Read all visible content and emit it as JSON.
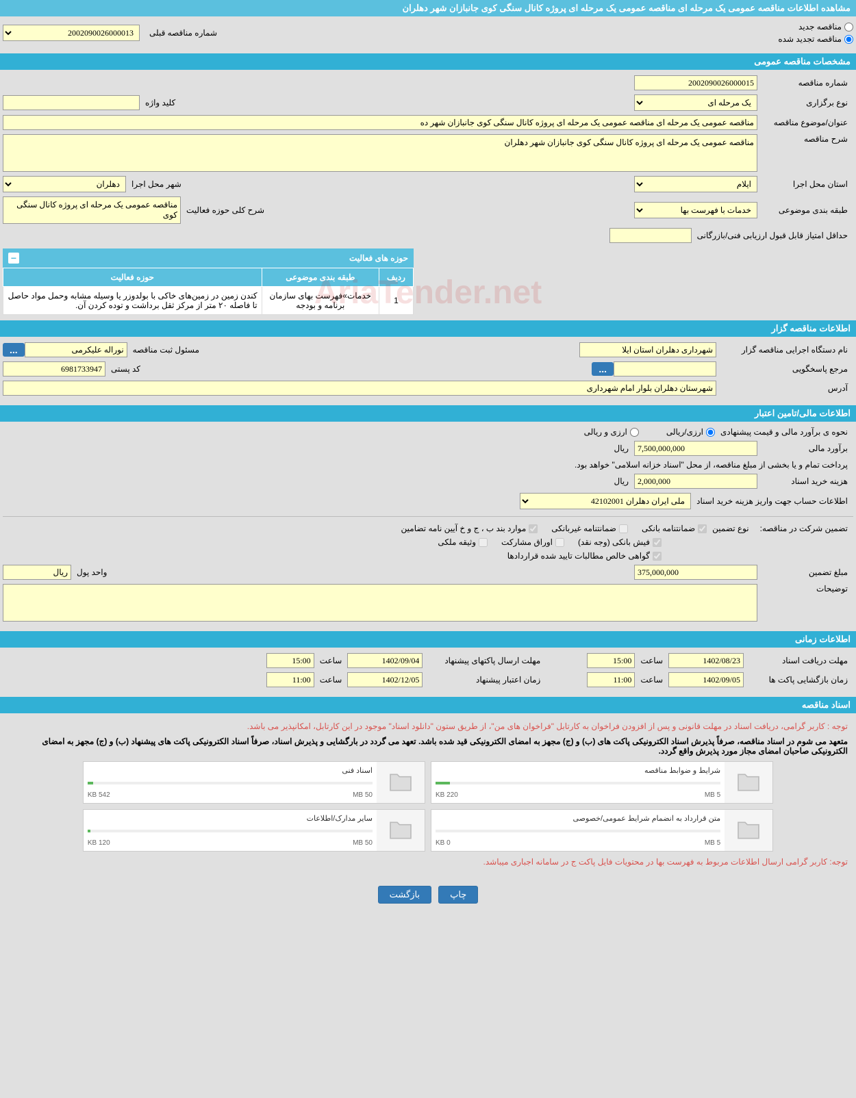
{
  "main_title": "مشاهده اطلاعات مناقصه عمومی یک مرحله ای مناقصه عمومی یک مرحله ای پروژه کانال سنگی کوی جانبازان شهر دهلران",
  "tender_type": {
    "new_label": "مناقصه جدید",
    "renew_label": "مناقصه تجدید شده",
    "prev_number_label": "شماره مناقصه قبلی",
    "prev_number": "2002090026000013"
  },
  "section_general": "مشخصات مناقصه عمومی",
  "general": {
    "tender_no_label": "شماره مناقصه",
    "tender_no": "2002090026000015",
    "type_label": "نوع برگزاری",
    "type": "یک مرحله ای",
    "keyword_label": "کلید واژه",
    "keyword": "",
    "subject_label": "عنوان/موضوع مناقصه",
    "subject": "مناقصه عمومی یک مرحله ای مناقصه عمومی یک مرحله ای پروژه کانال سنگی کوی جانبازان شهر ده",
    "desc_label": "شرح مناقصه",
    "desc": "مناقصه عمومی یک مرحله ای پروژه کانال سنگی کوی جانبازان شهر دهلران",
    "province_label": "استان محل اجرا",
    "province": "ایلام",
    "city_label": "شهر محل اجرا",
    "city": "دهلران",
    "category_label": "طبقه بندی موضوعی",
    "category": "خدمات با فهرست بها",
    "activity_desc_label": "شرح کلی حوزه فعالیت",
    "activity_desc": "مناقصه عمومی یک مرحله ای پروژه کانال سنگی کوی",
    "min_score_label": "حداقل امتیاز قابل قبول ارزیابی فنی/بازرگانی",
    "min_score": ""
  },
  "activity_table": {
    "title": "حوزه های فعالیت",
    "col_row": "ردیف",
    "col_category": "طبقه بندی موضوعی",
    "col_activity": "حوزه فعالیت",
    "rows": [
      {
        "n": "1",
        "cat": "خدمات»فهرست بهای سازمان برنامه و بودجه",
        "act": "کندن زمین در زمین‌های خاکی با بولدوزر یا وسیله مشابه وحمل مواد حاصل تا فاصله ۲۰ متر از مرکز ثقل برداشت و توده کردن آن."
      }
    ]
  },
  "section_org": "اطلاعات مناقصه گزار",
  "org": {
    "name_label": "نام دستگاه اجرایی مناقصه گزار",
    "name": "شهرداری دهلران استان ایلا",
    "resp_label": "مسئول ثبت مناقصه",
    "resp": "نوراله علیکرمی",
    "dots": "...",
    "ref_label": "مرجع پاسخگویی",
    "ref": "",
    "postal_label": "کد پستی",
    "postal": "6981733947",
    "address_label": "آدرس",
    "address": "شهرستان دهلران بلوار امام شهرداری"
  },
  "section_fin": "اطلاعات مالی/تامین اعتبار",
  "fin": {
    "method_label": "نحوه ی برآورد مالی و قیمت پیشنهادی",
    "method_rial": "ارزی/ریالی",
    "method_fx": "ارزی و ریالی",
    "estimate_label": "برآورد مالی",
    "estimate": "7,500,000,000",
    "rial": "ریال",
    "payment_note": "پرداخت تمام و یا بخشی از مبلغ مناقصه، از محل \"اسناد خزانه اسلامی\" خواهد بود.",
    "doc_cost_label": "هزینه خرید اسناد",
    "doc_cost": "2,000,000",
    "account_label": "اطلاعات حساب جهت واریز هزینه خرید اسناد",
    "account": "ملی ایران دهلران 42102001",
    "guarantee_label": "تضمین شرکت در مناقصه:",
    "guarantee_type_label": "نوع تضمین",
    "chk_bank": "ضمانتنامه بانکی",
    "chk_nonbank": "ضمانتنامه غیربانکی",
    "chk_regs": "موارد بند ب ، ج و خ آیین نامه تضامین",
    "chk_cash": "فیش بانکی (وجه نقد)",
    "chk_shares": "اوراق مشارکت",
    "chk_property": "وثیقه ملکی",
    "chk_cert": "گواهی خالص مطالبات تایید شده قراردادها",
    "amount_label": "مبلغ تضمین",
    "amount": "375,000,000",
    "currency_label": "واحد پول",
    "currency": "ریال",
    "notes_label": "توضیحات"
  },
  "section_time": "اطلاعات زمانی",
  "time": {
    "receive_label": "مهلت دریافت اسناد",
    "receive_date": "1402/08/23",
    "receive_time_label": "ساعت",
    "receive_time": "15:00",
    "send_label": "مهلت ارسال پاکتهای پیشنهاد",
    "send_date": "1402/09/04",
    "send_time": "15:00",
    "open_label": "زمان بازگشایی پاکت ها",
    "open_date": "1402/09/05",
    "open_time": "11:00",
    "validity_label": "زمان اعتبار پیشنهاد",
    "validity_date": "1402/12/05",
    "validity_time": "11:00"
  },
  "section_docs": "اسناد مناقصه",
  "docs": {
    "note1": "توجه : کاربر گرامی، دریافت اسناد در مهلت قانونی و پس از افزودن فراخوان به کارتابل \"فراخوان های من\"، از طریق ستون \"دانلود اسناد\" موجود در این کارتابل، امکانپذیر می باشد.",
    "note2": "متعهد می شوم در اسناد مناقصه، صرفاً پذیرش اسناد الکترونیکی پاکت های (ب) و (ج) مجهز به امضای الکترونیکی قید شده باشد. تعهد می گردد در بارگشایی و پذیرش اسناد، صرفاً اسناد الکترونیکی پاکت های پیشنهاد (ب) و (ج) مجهز به امضای الکترونیکی صاحبان امضای مجاز مورد پذیرش واقع گردد.",
    "note3": "توجه: کاربر گرامی ارسال اطلاعات مربوط به فهرست بها در محتویات فایل پاکت ج در سامانه اجباری میباشد.",
    "files": [
      {
        "title": "شرایط و ضوابط مناقصه",
        "size": "220 KB",
        "max": "5 MB",
        "pct": 5
      },
      {
        "title": "اسناد فنی",
        "size": "542 KB",
        "max": "50 MB",
        "pct": 2
      },
      {
        "title": "متن قرارداد به انضمام شرایط عمومی/خصوصی",
        "size": "0 KB",
        "max": "5 MB",
        "pct": 0
      },
      {
        "title": "سایر مدارک/اطلاعات",
        "size": "120 KB",
        "max": "50 MB",
        "pct": 1
      }
    ]
  },
  "buttons": {
    "print": "چاپ",
    "back": "بازگشت"
  }
}
